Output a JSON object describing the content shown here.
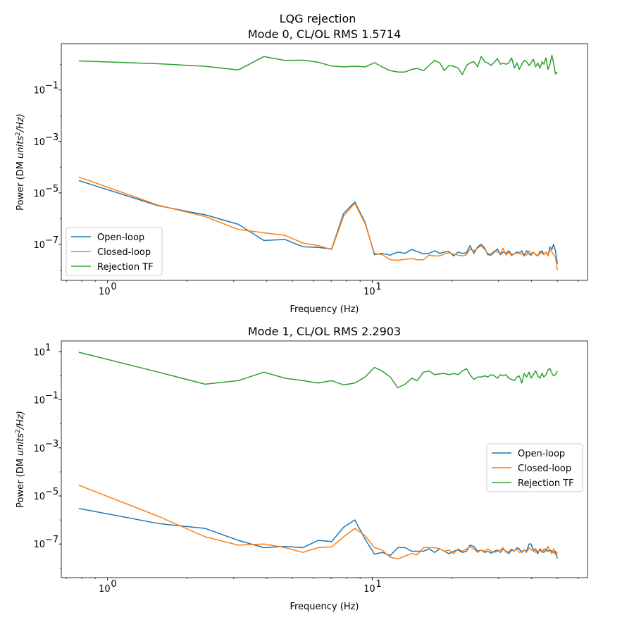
{
  "figure": {
    "suptitle": "LQG rejection"
  },
  "chart_data": [
    {
      "type": "line",
      "title": "Mode 0, CL/OL RMS 1.5714",
      "xlabel": "Frequency (Hz)",
      "ylabel_prefix": "Power (DM ",
      "ylabel_units": "units",
      "ylabel_exp": "2",
      "ylabel_suffix": "/Hz)",
      "xscale": "log",
      "yscale": "log",
      "xlim": [
        0.67,
        65
      ],
      "ylim_exp": [
        -8.4,
        0.8
      ],
      "xticks": [
        {
          "value": 1,
          "label": "10",
          "exp": "0"
        },
        {
          "value": 10,
          "label": "10",
          "exp": "1"
        }
      ],
      "yticks": [
        {
          "value": -7,
          "label": "10",
          "exp": "−7"
        },
        {
          "value": -5,
          "label": "10",
          "exp": "−5"
        },
        {
          "value": -3,
          "label": "10",
          "exp": "−3"
        },
        {
          "value": -1,
          "label": "10",
          "exp": "−1"
        }
      ],
      "grid": false,
      "legend_position": "lower-left",
      "series": [
        {
          "name": "Open-loop",
          "color": "#1f77b4",
          "x": [
            0.78,
            1.56,
            2.34,
            3.12,
            3.9,
            4.68,
            5.47,
            6.25,
            7.03,
            7.8,
            8.6,
            9.4,
            10.2,
            10.9,
            11.7,
            12.5,
            13.3,
            14.1,
            14.8,
            15.6,
            16.4,
            17.2,
            18.0,
            18.7,
            19.5,
            20.3,
            21.1,
            21.9,
            22.7,
            23.4,
            24.2,
            25.0,
            25.8,
            26.6,
            27.3,
            28.1,
            28.9,
            29.7,
            30.5,
            31.2,
            32.0,
            32.8,
            33.6,
            34.4,
            35.2,
            35.9,
            36.7,
            37.5,
            38.3,
            39.1,
            39.8,
            40.6,
            41.4,
            42.2,
            43.0,
            43.8,
            44.5,
            45.3,
            46.1,
            46.9,
            47.7,
            48.4,
            49.2,
            50.0
          ],
          "y_exp": [
            -4.52,
            -5.5,
            -5.85,
            -6.22,
            -6.85,
            -6.81,
            -7.09,
            -7.12,
            -7.18,
            -5.8,
            -5.35,
            -6.15,
            -7.4,
            -7.35,
            -7.42,
            -7.3,
            -7.35,
            -7.2,
            -7.28,
            -7.37,
            -7.35,
            -7.25,
            -7.35,
            -7.3,
            -7.28,
            -7.45,
            -7.3,
            -7.35,
            -7.32,
            -7.05,
            -7.35,
            -7.1,
            -7.0,
            -7.15,
            -7.4,
            -7.42,
            -7.3,
            -7.18,
            -7.4,
            -7.3,
            -7.35,
            -7.25,
            -7.4,
            -7.37,
            -7.3,
            -7.35,
            -7.25,
            -7.45,
            -7.25,
            -7.38,
            -7.42,
            -7.3,
            -7.4,
            -7.45,
            -7.35,
            -7.25,
            -7.4,
            -7.3,
            -7.42,
            -7.1,
            -7.2,
            -7.0,
            -7.25,
            -7.75
          ]
        },
        {
          "name": "Closed-loop",
          "color": "#ff7f0e",
          "x": [
            0.78,
            1.56,
            2.34,
            3.12,
            3.9,
            4.68,
            5.47,
            6.25,
            7.03,
            7.8,
            8.6,
            9.4,
            10.2,
            10.9,
            11.7,
            12.5,
            13.3,
            14.1,
            14.8,
            15.6,
            16.4,
            17.2,
            18.0,
            18.7,
            19.5,
            20.3,
            21.1,
            21.9,
            22.7,
            23.4,
            24.2,
            25.0,
            25.8,
            26.6,
            27.3,
            28.1,
            28.9,
            29.7,
            30.5,
            31.2,
            32.0,
            32.8,
            33.6,
            34.4,
            35.2,
            35.9,
            36.7,
            37.5,
            38.3,
            39.1,
            39.8,
            40.6,
            41.4,
            42.2,
            43.0,
            43.8,
            44.5,
            45.3,
            46.1,
            46.9,
            47.7,
            48.4,
            49.2,
            50.0
          ],
          "y_exp": [
            -4.38,
            -5.48,
            -5.92,
            -6.42,
            -6.55,
            -6.65,
            -6.95,
            -7.05,
            -7.2,
            -5.9,
            -5.4,
            -6.2,
            -7.35,
            -7.4,
            -7.6,
            -7.62,
            -7.58,
            -7.55,
            -7.6,
            -7.6,
            -7.42,
            -7.45,
            -7.45,
            -7.38,
            -7.33,
            -7.38,
            -7.42,
            -7.45,
            -7.4,
            -7.18,
            -7.25,
            -7.15,
            -7.05,
            -7.2,
            -7.35,
            -7.38,
            -7.25,
            -7.3,
            -7.35,
            -7.15,
            -7.42,
            -7.3,
            -7.45,
            -7.35,
            -7.35,
            -7.3,
            -7.4,
            -7.35,
            -7.42,
            -7.25,
            -7.35,
            -7.3,
            -7.38,
            -7.45,
            -7.25,
            -7.35,
            -7.4,
            -7.3,
            -7.45,
            -7.2,
            -7.3,
            -7.4,
            -7.5,
            -8.0
          ]
        },
        {
          "name": "Rejection TF",
          "color": "#2ca02c",
          "x": [
            0.78,
            1.56,
            2.34,
            3.12,
            3.9,
            4.68,
            5.47,
            6.25,
            7.03,
            7.8,
            8.6,
            9.4,
            10.2,
            10.9,
            11.7,
            12.5,
            13.3,
            14.1,
            14.8,
            15.6,
            16.4,
            17.2,
            18.0,
            18.7,
            19.5,
            20.3,
            21.1,
            21.9,
            22.7,
            23.4,
            24.2,
            25.0,
            25.8,
            26.6,
            27.3,
            28.1,
            28.9,
            29.7,
            30.5,
            31.2,
            32.0,
            32.8,
            33.6,
            34.4,
            35.2,
            35.9,
            36.7,
            37.5,
            38.3,
            39.1,
            39.8,
            40.6,
            41.4,
            42.2,
            43.0,
            43.8,
            44.5,
            45.3,
            46.1,
            46.9,
            47.7,
            48.4,
            49.2,
            50.0
          ],
          "y_exp": [
            0.13,
            0.02,
            -0.08,
            -0.22,
            0.3,
            0.15,
            0.16,
            0.08,
            -0.07,
            -0.1,
            -0.08,
            -0.1,
            0.06,
            -0.1,
            -0.25,
            -0.3,
            -0.3,
            -0.2,
            -0.16,
            -0.25,
            -0.05,
            0.15,
            0.05,
            -0.25,
            -0.05,
            -0.08,
            -0.15,
            -0.4,
            -0.05,
            0.05,
            0.1,
            -0.1,
            0.3,
            0.1,
            0.05,
            -0.05,
            0.08,
            0.22,
            0.0,
            0.05,
            0.0,
            0.05,
            0.25,
            -0.15,
            0.05,
            -0.2,
            0.0,
            0.15,
            0.1,
            -0.05,
            0.05,
            0.2,
            -0.1,
            0.05,
            -0.15,
            0.1,
            0.0,
            0.25,
            -0.2,
            0.0,
            0.35,
            0.05,
            -0.38,
            -0.3
          ]
        }
      ]
    },
    {
      "type": "line",
      "title": "Mode 1, CL/OL RMS 2.2903",
      "xlabel": "Frequency (Hz)",
      "ylabel_prefix": "Power (DM ",
      "ylabel_units": "units",
      "ylabel_exp": "2",
      "ylabel_suffix": "/Hz)",
      "xscale": "log",
      "yscale": "log",
      "xlim": [
        0.67,
        65
      ],
      "ylim_exp": [
        -8.4,
        1.45
      ],
      "xticks": [
        {
          "value": 1,
          "label": "10",
          "exp": "0"
        },
        {
          "value": 10,
          "label": "10",
          "exp": "1"
        }
      ],
      "yticks": [
        {
          "value": -7,
          "label": "10",
          "exp": "−7"
        },
        {
          "value": -5,
          "label": "10",
          "exp": "−5"
        },
        {
          "value": -3,
          "label": "10",
          "exp": "−3"
        },
        {
          "value": -1,
          "label": "10",
          "exp": "−1"
        },
        {
          "value": 1,
          "label": "10",
          "exp": "1"
        }
      ],
      "grid": false,
      "legend_position": "center-right",
      "series": [
        {
          "name": "Open-loop",
          "color": "#1f77b4",
          "x": [
            0.78,
            1.56,
            2.34,
            3.12,
            3.9,
            4.68,
            5.47,
            6.25,
            7.03,
            7.8,
            8.6,
            9.4,
            10.2,
            10.9,
            11.7,
            12.5,
            13.3,
            14.1,
            14.8,
            15.6,
            16.4,
            17.2,
            18.0,
            18.7,
            19.5,
            20.3,
            21.1,
            21.9,
            22.7,
            23.4,
            24.2,
            25.0,
            25.8,
            26.6,
            27.3,
            28.1,
            28.9,
            29.7,
            30.5,
            31.2,
            32.0,
            32.8,
            33.6,
            34.4,
            35.2,
            35.9,
            36.7,
            37.5,
            38.3,
            39.1,
            39.8,
            40.6,
            41.4,
            42.2,
            43.0,
            43.8,
            44.5,
            45.3,
            46.1,
            46.9,
            47.7,
            48.4,
            49.2,
            50.0
          ],
          "y_exp": [
            -5.52,
            -6.15,
            -6.35,
            -6.85,
            -7.15,
            -7.1,
            -7.15,
            -6.85,
            -6.9,
            -6.3,
            -6.0,
            -6.8,
            -7.42,
            -7.35,
            -7.48,
            -7.15,
            -7.15,
            -7.3,
            -7.3,
            -7.3,
            -7.2,
            -7.35,
            -7.2,
            -7.3,
            -7.4,
            -7.3,
            -7.25,
            -7.35,
            -7.3,
            -7.05,
            -7.1,
            -7.3,
            -7.25,
            -7.35,
            -7.3,
            -7.38,
            -7.3,
            -7.25,
            -7.35,
            -7.2,
            -7.3,
            -7.4,
            -7.25,
            -7.3,
            -7.15,
            -7.2,
            -7.35,
            -7.25,
            -7.3,
            -7.0,
            -7.0,
            -7.3,
            -7.2,
            -7.4,
            -7.2,
            -7.3,
            -7.35,
            -7.2,
            -7.3,
            -7.25,
            -7.3,
            -7.35,
            -7.3,
            -7.6
          ]
        },
        {
          "name": "Closed-loop",
          "color": "#ff7f0e",
          "x": [
            0.78,
            1.56,
            2.34,
            3.12,
            3.9,
            4.68,
            5.47,
            6.25,
            7.03,
            7.8,
            8.6,
            9.4,
            10.2,
            10.9,
            11.7,
            12.5,
            13.3,
            14.1,
            14.8,
            15.6,
            16.4,
            17.2,
            18.0,
            18.7,
            19.5,
            20.3,
            21.1,
            21.9,
            22.7,
            23.4,
            24.2,
            25.0,
            25.8,
            26.6,
            27.3,
            28.1,
            28.9,
            29.7,
            30.5,
            31.2,
            32.0,
            32.8,
            33.6,
            34.4,
            35.2,
            35.9,
            36.7,
            37.5,
            38.3,
            39.1,
            39.8,
            40.6,
            41.4,
            42.2,
            43.0,
            43.8,
            44.5,
            45.3,
            46.1,
            46.9,
            47.7,
            48.4,
            49.2,
            50.0
          ],
          "y_exp": [
            -4.55,
            -5.85,
            -6.7,
            -7.05,
            -7.0,
            -7.15,
            -7.35,
            -7.15,
            -7.12,
            -6.7,
            -6.35,
            -6.65,
            -7.15,
            -7.25,
            -7.55,
            -7.62,
            -7.5,
            -7.4,
            -7.45,
            -7.15,
            -7.15,
            -7.15,
            -7.2,
            -7.3,
            -7.25,
            -7.4,
            -7.2,
            -7.3,
            -7.2,
            -7.12,
            -7.2,
            -7.35,
            -7.25,
            -7.3,
            -7.2,
            -7.3,
            -7.35,
            -7.3,
            -7.25,
            -7.15,
            -7.35,
            -7.3,
            -7.2,
            -7.3,
            -7.2,
            -7.35,
            -7.3,
            -7.25,
            -7.35,
            -7.15,
            -7.25,
            -7.2,
            -7.35,
            -7.3,
            -7.25,
            -7.35,
            -7.2,
            -7.3,
            -7.1,
            -7.3,
            -7.4,
            -7.2,
            -7.45,
            -7.35
          ]
        },
        {
          "name": "Rejection TF",
          "color": "#2ca02c",
          "x": [
            0.78,
            1.56,
            2.34,
            3.12,
            3.9,
            4.68,
            5.47,
            6.25,
            7.03,
            7.8,
            8.6,
            9.4,
            10.2,
            10.9,
            11.7,
            12.5,
            13.3,
            14.1,
            14.8,
            15.6,
            16.4,
            17.2,
            18.0,
            18.7,
            19.5,
            20.3,
            21.1,
            21.9,
            22.7,
            23.4,
            24.2,
            25.0,
            25.8,
            26.6,
            27.3,
            28.1,
            28.9,
            29.7,
            30.5,
            31.2,
            32.0,
            32.8,
            33.6,
            34.4,
            35.2,
            35.9,
            36.7,
            37.5,
            38.3,
            39.1,
            39.8,
            40.6,
            41.4,
            42.2,
            43.0,
            43.8,
            44.5,
            45.3,
            46.1,
            46.9,
            47.7,
            48.4,
            49.2,
            50.0
          ],
          "y_exp": [
            0.98,
            0.15,
            -0.35,
            -0.2,
            0.15,
            -0.1,
            -0.2,
            -0.3,
            -0.2,
            -0.38,
            -0.3,
            -0.05,
            0.35,
            0.2,
            -0.05,
            -0.5,
            -0.35,
            -0.1,
            -0.2,
            0.15,
            0.2,
            0.05,
            0.08,
            0.1,
            0.05,
            0.1,
            0.05,
            0.2,
            0.3,
            0.05,
            -0.15,
            -0.05,
            -0.05,
            0.0,
            -0.05,
            0.05,
            0.0,
            -0.1,
            0.05,
            0.0,
            0.05,
            -0.1,
            -0.15,
            -0.2,
            -0.05,
            0.0,
            -0.3,
            0.1,
            -0.05,
            0.15,
            -0.1,
            0.05,
            0.2,
            0.0,
            -0.1,
            0.1,
            -0.05,
            0.05,
            0.25,
            0.3,
            0.1,
            0.0,
            0.05,
            0.2
          ]
        }
      ]
    }
  ]
}
